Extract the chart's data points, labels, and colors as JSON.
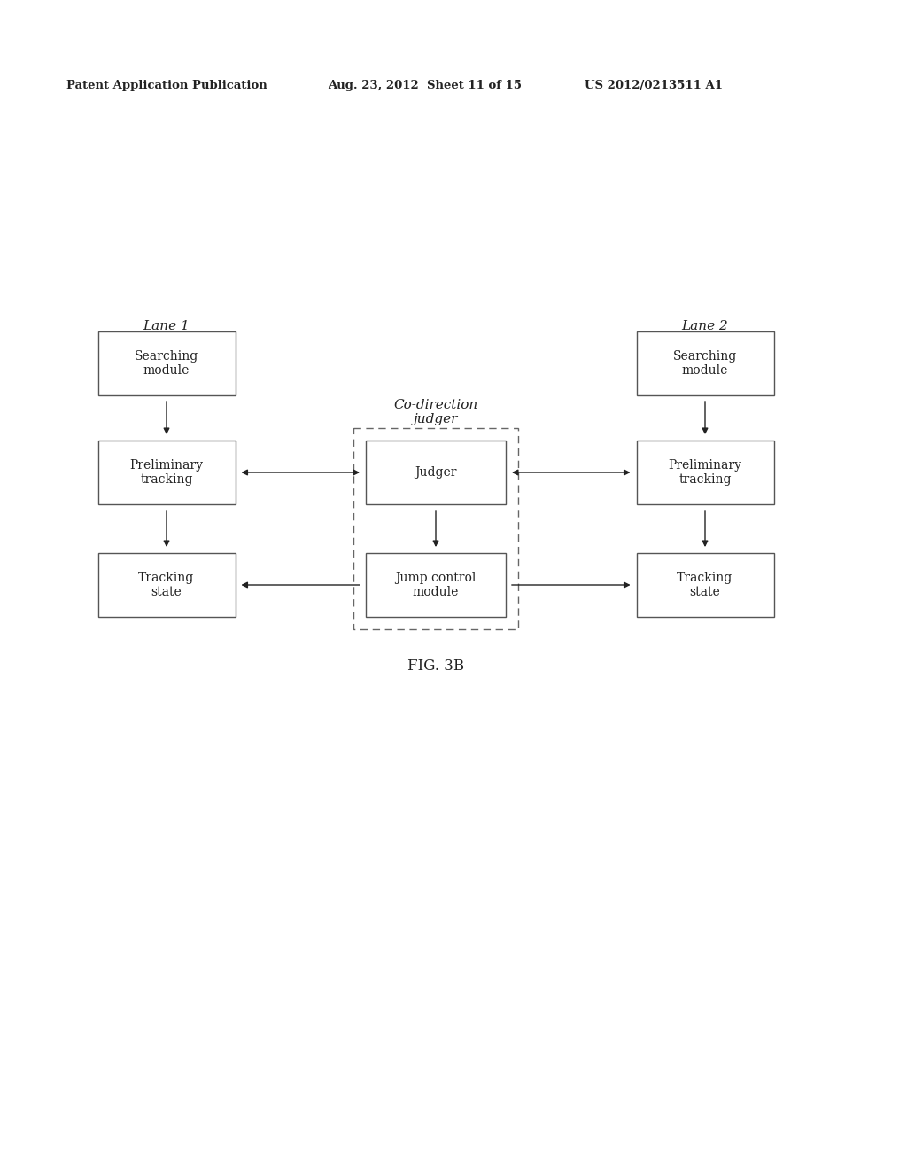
{
  "header_left": "Patent Application Publication",
  "header_mid": "Aug. 23, 2012  Sheet 11 of 15",
  "header_right": "US 2012/0213511 A1",
  "figure_label": "FIG. 3B",
  "lane1_label": "Lane 1",
  "lane2_label": "Lane 2",
  "co_direction_label": "Co-direction\njudger",
  "bg_color": "#ffffff",
  "box_edge_color": "#555555",
  "text_color": "#222222",
  "arrow_color": "#222222",
  "font_size_box": 10,
  "font_size_label": 11,
  "font_size_header": 9.5
}
